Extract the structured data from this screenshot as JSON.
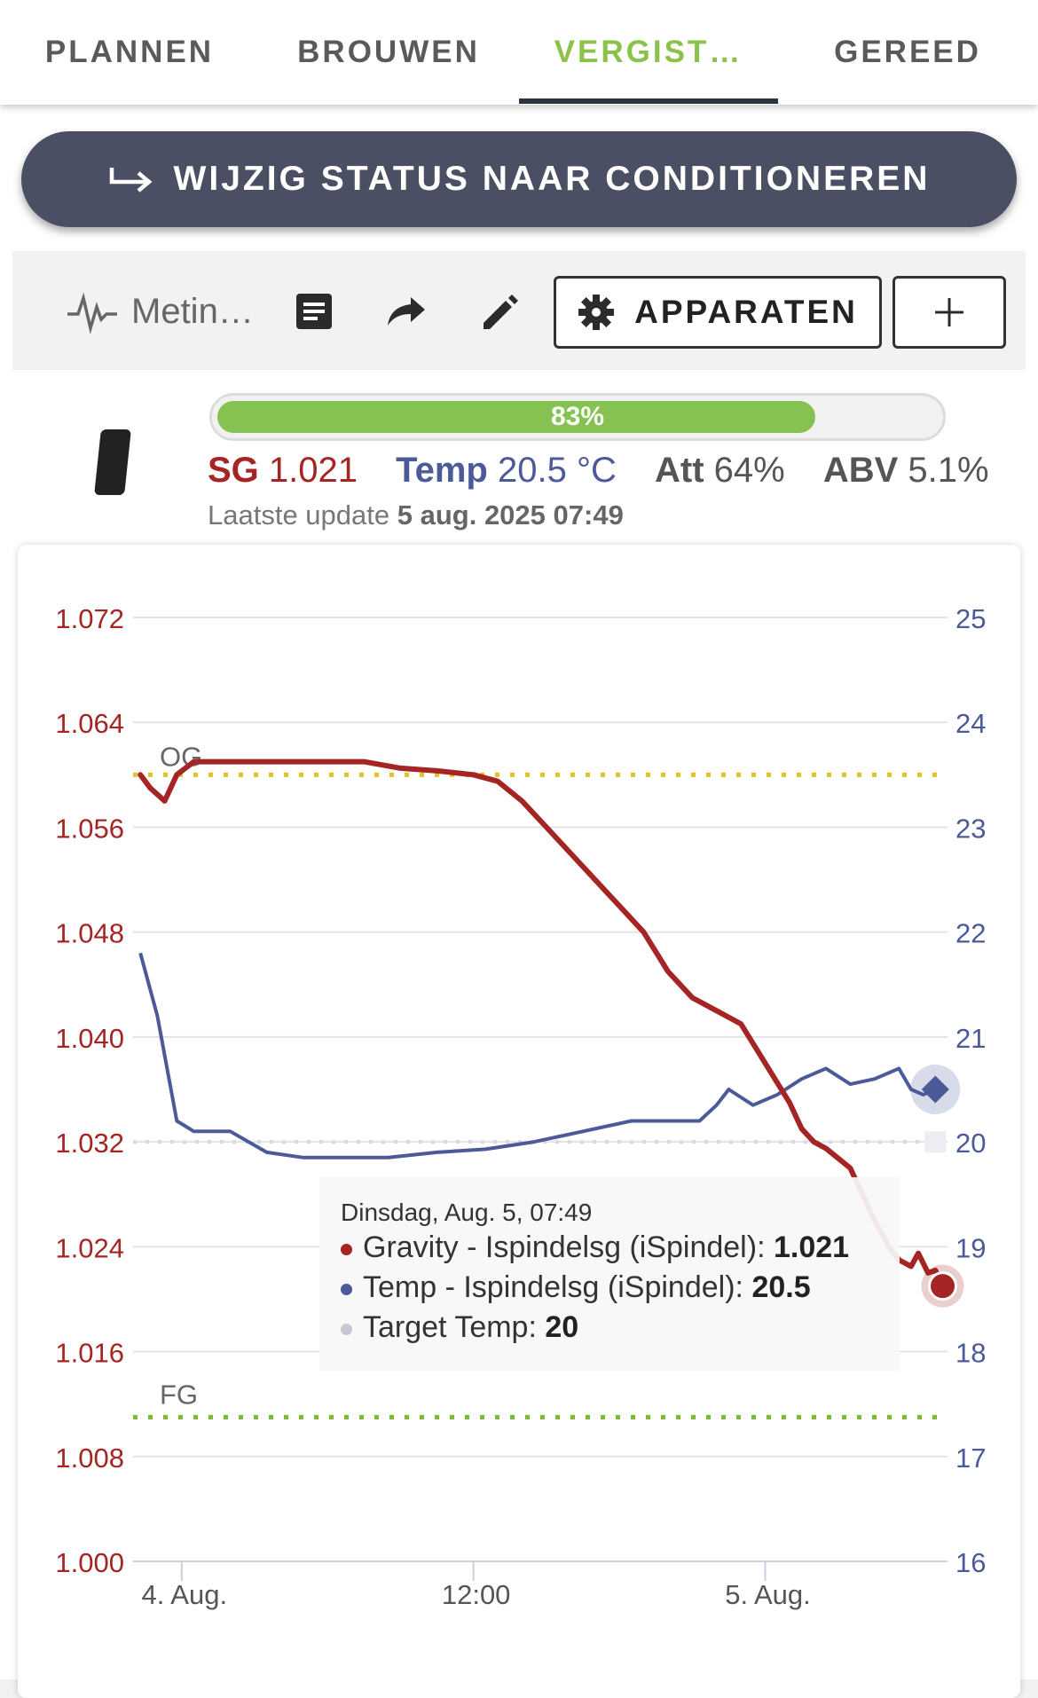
{
  "tabs": [
    {
      "label": "PLANNEN",
      "active": false
    },
    {
      "label": "BROUWEN",
      "active": false
    },
    {
      "label": "VERGIST…",
      "active": true
    },
    {
      "label": "GEREED",
      "active": false
    }
  ],
  "status_button": {
    "label": "WIJZIG STATUS NAAR CONDITIONEREN",
    "icon": "arrow-right-hook-icon"
  },
  "toolbar": {
    "metingen_label": "Metin…",
    "apparaten_label": "APPARATEN",
    "plus_label": "+",
    "icons": [
      "activity-icon",
      "note-icon",
      "share-icon",
      "edit-icon",
      "gear-icon"
    ]
  },
  "progress": {
    "label": "83%",
    "value": 0.83
  },
  "stats": {
    "sg_label": "SG",
    "sg_value": "1.021",
    "temp_label": "Temp",
    "temp_value": "20.5 °C",
    "att_label": "Att",
    "att_value": "64%",
    "abv_label": "ABV",
    "abv_value": "5.1%"
  },
  "last_update": {
    "label": "Laatste update",
    "value": "5 aug. 2025 07:49"
  },
  "colors": {
    "accent_green": "#8bc34a",
    "gravity": "#a52525",
    "temp": "#4c5a99",
    "og_line": "#e2c12b",
    "fg_line": "#7cbb3c"
  },
  "chart_data": {
    "type": "line",
    "y_left": {
      "ticks": [
        "1.000",
        "1.008",
        "1.016",
        "1.024",
        "1.032",
        "1.040",
        "1.048",
        "1.056",
        "1.064",
        "1.072"
      ],
      "range": [
        1.0,
        1.072
      ]
    },
    "y_right": {
      "ticks": [
        "16",
        "17",
        "18",
        "19",
        "20",
        "21",
        "22",
        "23",
        "24",
        "25"
      ],
      "range": [
        16,
        25
      ]
    },
    "x_ticks": [
      {
        "label": "4. Aug.",
        "t": 3.5
      },
      {
        "label": "12:00",
        "t": 15.5
      },
      {
        "label": "5. Aug.",
        "t": 27.5
      }
    ],
    "x_range": [
      1.5,
      35.0
    ],
    "grid": true,
    "reference_lines": [
      {
        "label": "OG",
        "value": 1.06
      },
      {
        "label": "FG",
        "value": 1.011
      }
    ],
    "series": [
      {
        "name": "Gravity - Ispindelsg (iSpindel)",
        "axis": "left",
        "x": [
          1.8,
          2.2,
          2.8,
          3.3,
          4.0,
          5.5,
          7.5,
          9.5,
          11.0,
          12.5,
          14.0,
          15.5,
          16.5,
          17.5,
          18.5,
          19.5,
          20.5,
          21.5,
          22.5,
          23.5,
          24.5,
          25.5,
          26.5,
          27.5,
          28.5,
          29.0,
          29.5,
          30.0,
          31.0,
          32.0,
          32.6,
          33.0,
          33.5,
          33.8,
          34.2,
          34.5,
          34.8
        ],
        "y": [
          1.06,
          1.059,
          1.058,
          1.06,
          1.061,
          1.061,
          1.061,
          1.061,
          1.061,
          1.0605,
          1.0603,
          1.06,
          1.0595,
          1.058,
          1.056,
          1.054,
          1.052,
          1.05,
          1.048,
          1.045,
          1.043,
          1.042,
          1.041,
          1.038,
          1.035,
          1.033,
          1.032,
          1.0315,
          1.03,
          1.026,
          1.024,
          1.023,
          1.0225,
          1.0235,
          1.022,
          1.0222,
          1.021
        ]
      },
      {
        "name": "Temp - Ispindelsg (iSpindel)",
        "axis": "right",
        "x": [
          1.8,
          2.5,
          3.3,
          4.0,
          5.5,
          7.0,
          8.5,
          9.5,
          12.0,
          14.0,
          16.0,
          18.0,
          20.0,
          22.0,
          23.0,
          24.0,
          24.8,
          25.5,
          26.0,
          27.0,
          28.0,
          29.0,
          30.0,
          31.0,
          32.0,
          32.5,
          33.0,
          33.5,
          34.0,
          34.5
        ],
        "y": [
          21.8,
          21.2,
          20.2,
          20.1,
          20.1,
          19.9,
          19.85,
          19.85,
          19.85,
          19.9,
          19.93,
          20.0,
          20.1,
          20.2,
          20.2,
          20.2,
          20.2,
          20.35,
          20.5,
          20.35,
          20.45,
          20.6,
          20.7,
          20.55,
          20.6,
          20.65,
          20.7,
          20.5,
          20.45,
          20.5
        ]
      },
      {
        "name": "Target Temp",
        "axis": "right",
        "x": [
          1.5,
          35.0
        ],
        "y": [
          20.0,
          20.0
        ]
      }
    ],
    "tooltip": {
      "title": "Dinsdag, Aug. 5, 07:49",
      "rows": [
        {
          "name": "Gravity - Ispindelsg (iSpindel)",
          "value": "1.021"
        },
        {
          "name": "Temp - Ispindelsg (iSpindel)",
          "value": "20.5"
        },
        {
          "name": "Target Temp",
          "value": "20"
        }
      ]
    }
  }
}
